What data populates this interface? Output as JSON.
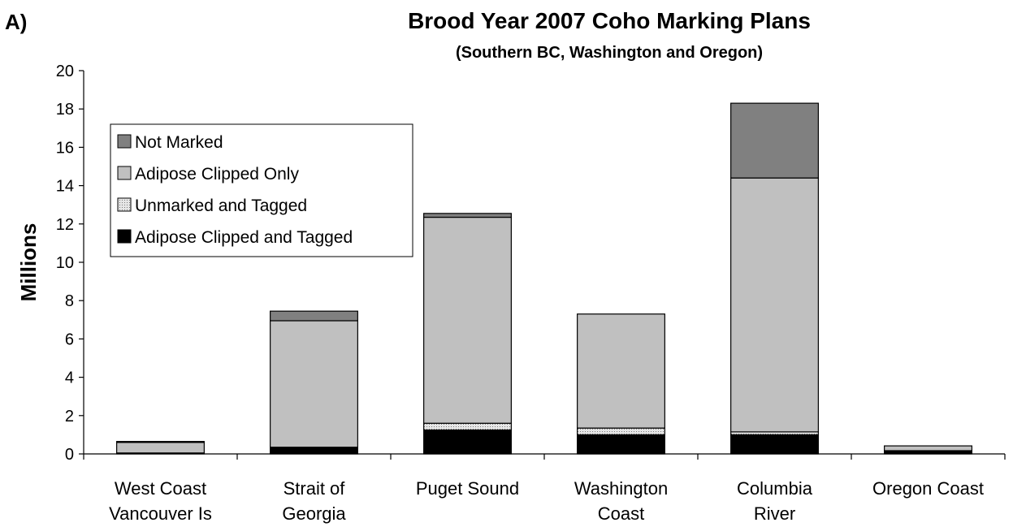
{
  "panel_label": "A)",
  "chart_data": {
    "type": "bar",
    "stacked": true,
    "title": "Brood Year 2007 Coho Marking Plans",
    "subtitle": "(Southern BC, Washington and Oregon)",
    "xlabel": "",
    "ylabel": "Millions",
    "ylim": [
      0,
      20
    ],
    "yticks": [
      0,
      2,
      4,
      6,
      8,
      10,
      12,
      14,
      16,
      18,
      20
    ],
    "grid": false,
    "legend_position": "top-left",
    "categories": [
      [
        "West Coast",
        "Vancouver Is"
      ],
      [
        "Strait of",
        "Georgia"
      ],
      [
        "Puget Sound"
      ],
      [
        "Washington",
        "Coast"
      ],
      [
        "Columbia",
        "River"
      ],
      [
        "Oregon Coast"
      ]
    ],
    "series": [
      {
        "name": "Adipose Clipped and Tagged",
        "color": "#000000",
        "pattern": "solid",
        "values": [
          0.05,
          0.3,
          1.25,
          1.0,
          1.0,
          0.15
        ]
      },
      {
        "name": "Unmarked and Tagged",
        "color": "#d9d9d9",
        "pattern": "dots",
        "values": [
          0.0,
          0.05,
          0.35,
          0.35,
          0.15,
          0.02
        ]
      },
      {
        "name": "Adipose Clipped Only",
        "color": "#c0c0c0",
        "pattern": "solid",
        "values": [
          0.55,
          6.6,
          10.75,
          5.95,
          13.25,
          0.25
        ]
      },
      {
        "name": "Not Marked",
        "color": "#808080",
        "pattern": "solid",
        "values": [
          0.05,
          0.5,
          0.2,
          0.0,
          3.9,
          0.0
        ]
      }
    ],
    "legend_order": [
      "Not Marked",
      "Adipose Clipped Only",
      "Unmarked and Tagged",
      "Adipose Clipped and Tagged"
    ]
  }
}
